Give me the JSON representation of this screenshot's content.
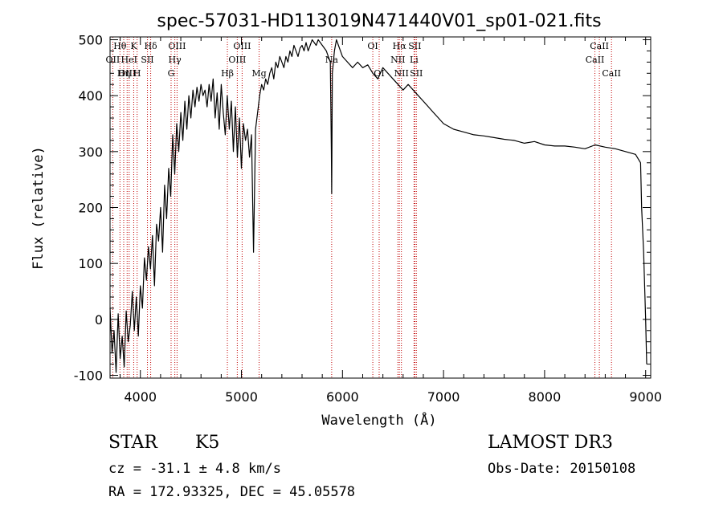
{
  "chart_data": {
    "type": "line",
    "title": "spec-57031-HD113019N471440V01_sp01-021.fits",
    "xlabel": "Wavelength (Å)",
    "ylabel": "Flux (relative)",
    "xlim": [
      3700,
      9050
    ],
    "ylim": [
      -105,
      505
    ],
    "xticks": [
      4000,
      5000,
      6000,
      7000,
      8000,
      9000
    ],
    "yticks": [
      -100,
      0,
      100,
      200,
      300,
      400,
      500
    ],
    "series": [
      {
        "name": "flux",
        "x": [
          3700,
          3720,
          3740,
          3760,
          3780,
          3800,
          3820,
          3840,
          3860,
          3880,
          3900,
          3920,
          3940,
          3960,
          3980,
          4000,
          4020,
          4040,
          4060,
          4080,
          4100,
          4120,
          4140,
          4160,
          4180,
          4200,
          4220,
          4240,
          4260,
          4280,
          4300,
          4320,
          4340,
          4360,
          4380,
          4400,
          4420,
          4440,
          4460,
          4480,
          4500,
          4520,
          4540,
          4560,
          4580,
          4600,
          4620,
          4640,
          4660,
          4680,
          4700,
          4720,
          4740,
          4760,
          4780,
          4800,
          4820,
          4840,
          4860,
          4880,
          4900,
          4920,
          4940,
          4960,
          4980,
          5000,
          5020,
          5040,
          5060,
          5080,
          5100,
          5120,
          5140,
          5160,
          5180,
          5200,
          5220,
          5240,
          5260,
          5280,
          5300,
          5320,
          5340,
          5360,
          5380,
          5400,
          5420,
          5440,
          5460,
          5480,
          5500,
          5520,
          5540,
          5560,
          5580,
          5600,
          5620,
          5640,
          5660,
          5680,
          5700,
          5720,
          5740,
          5760,
          5780,
          5800,
          5820,
          5840,
          5860,
          5880,
          5890,
          5893,
          5900,
          5920,
          5940,
          5960,
          5980,
          6000,
          6050,
          6100,
          6150,
          6200,
          6250,
          6300,
          6350,
          6400,
          6450,
          6500,
          6550,
          6600,
          6650,
          6700,
          6750,
          6800,
          6850,
          6900,
          6950,
          7000,
          7100,
          7200,
          7300,
          7400,
          7500,
          7600,
          7700,
          7800,
          7900,
          8000,
          8100,
          8200,
          8300,
          8400,
          8500,
          8600,
          8700,
          8800,
          8900,
          8950,
          8960,
          8980,
          9000,
          9010
        ],
        "values": [
          20,
          -60,
          -20,
          -95,
          10,
          -70,
          -30,
          -85,
          15,
          -40,
          -10,
          50,
          -20,
          40,
          -30,
          60,
          20,
          110,
          70,
          130,
          90,
          150,
          60,
          170,
          140,
          200,
          120,
          240,
          180,
          270,
          220,
          330,
          260,
          350,
          300,
          370,
          320,
          390,
          340,
          400,
          360,
          410,
          380,
          415,
          390,
          420,
          400,
          410,
          380,
          420,
          390,
          430,
          360,
          405,
          340,
          420,
          370,
          330,
          400,
          340,
          390,
          300,
          380,
          290,
          360,
          270,
          350,
          320,
          340,
          290,
          330,
          120,
          340,
          370,
          400,
          420,
          410,
          430,
          420,
          440,
          450,
          430,
          460,
          450,
          470,
          460,
          450,
          470,
          460,
          480,
          470,
          490,
          480,
          470,
          485,
          490,
          480,
          495,
          480,
          490,
          500,
          495,
          490,
          500,
          495,
          490,
          485,
          480,
          470,
          460,
          300,
          225,
          440,
          480,
          500,
          490,
          480,
          470,
          460,
          450,
          460,
          450,
          455,
          440,
          430,
          450,
          440,
          430,
          420,
          410,
          420,
          410,
          400,
          390,
          380,
          370,
          360,
          350,
          340,
          335,
          330,
          328,
          325,
          322,
          320,
          315,
          318,
          312,
          310,
          310,
          308,
          305,
          312,
          308,
          305,
          300,
          295,
          280,
          200,
          120,
          0,
          -80
        ]
      }
    ],
    "lines": [
      {
        "label": "Hθ",
        "x": 3798,
        "row": 0
      },
      {
        "label": "OII",
        "x": 3727,
        "row": 1
      },
      {
        "label": "OIII",
        "x": 3869,
        "row": 2
      },
      {
        "label": "K",
        "x": 3934,
        "row": 0
      },
      {
        "label": "Hδ",
        "x": 4102,
        "row": 0
      },
      {
        "label": "HeI",
        "x": 3889,
        "row": 1
      },
      {
        "label": "SII",
        "x": 4070,
        "row": 1
      },
      {
        "label": "Hη",
        "x": 3835,
        "row": 2
      },
      {
        "label": "H",
        "x": 3968,
        "row": 2
      },
      {
        "label": "OIII",
        "x": 4363,
        "row": 0
      },
      {
        "label": "Hγ",
        "x": 4341,
        "row": 1
      },
      {
        "label": "G",
        "x": 4304,
        "row": 2
      },
      {
        "label": "OIII",
        "x": 5007,
        "row": 0
      },
      {
        "label": "OIII",
        "x": 4959,
        "row": 1
      },
      {
        "label": "Hβ",
        "x": 4861,
        "row": 2
      },
      {
        "label": "Mg",
        "x": 5175,
        "row": 2
      },
      {
        "label": "Na",
        "x": 5893,
        "row": 1
      },
      {
        "label": "OI",
        "x": 6300,
        "row": 0
      },
      {
        "label": "OI",
        "x": 6363,
        "row": 2
      },
      {
        "label": "Hα",
        "x": 6563,
        "row": 0
      },
      {
        "label": "SII",
        "x": 6716,
        "row": 0
      },
      {
        "label": "NII",
        "x": 6548,
        "row": 1
      },
      {
        "label": "Li",
        "x": 6708,
        "row": 1
      },
      {
        "label": "NII",
        "x": 6583,
        "row": 2
      },
      {
        "label": "SII",
        "x": 6731,
        "row": 2
      },
      {
        "label": "CaII",
        "x": 8542,
        "row": 0
      },
      {
        "label": "CaII",
        "x": 8498,
        "row": 1
      },
      {
        "label": "CaII",
        "x": 8662,
        "row": 2
      }
    ]
  },
  "info": {
    "object_class": "STAR",
    "subclass": "K5",
    "survey": "LAMOST DR3",
    "cz": "cz = -31.1 ± 4.8 km/s",
    "obs_date": "Obs-Date: 20150108",
    "radec": "RA = 172.93325, DEC =  45.05578"
  },
  "colors": {
    "line": "#000000",
    "marker": "#c00000",
    "axis": "#000000"
  }
}
